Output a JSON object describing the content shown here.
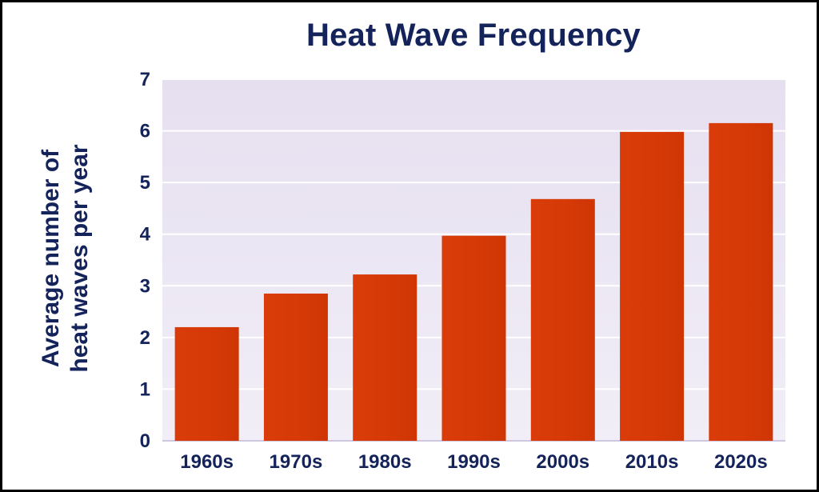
{
  "chart_data": {
    "type": "bar",
    "title": "Heat Wave Frequency",
    "xlabel": "",
    "ylabel_lines": [
      "Average number of",
      "heat waves per year"
    ],
    "categories": [
      "1960s",
      "1970s",
      "1980s",
      "1990s",
      "2000s",
      "2010s",
      "2020s"
    ],
    "values": [
      2.2,
      2.85,
      3.22,
      3.97,
      4.68,
      5.98,
      6.15
    ],
    "ylim": [
      0,
      7
    ],
    "yticks": [
      0,
      1,
      2,
      3,
      4,
      5,
      6,
      7
    ],
    "grid": true,
    "colors": {
      "bar": "#d63a06",
      "plot_background": "#ebe6f3",
      "gridline": "#ffffff",
      "text": "#14235a"
    }
  }
}
